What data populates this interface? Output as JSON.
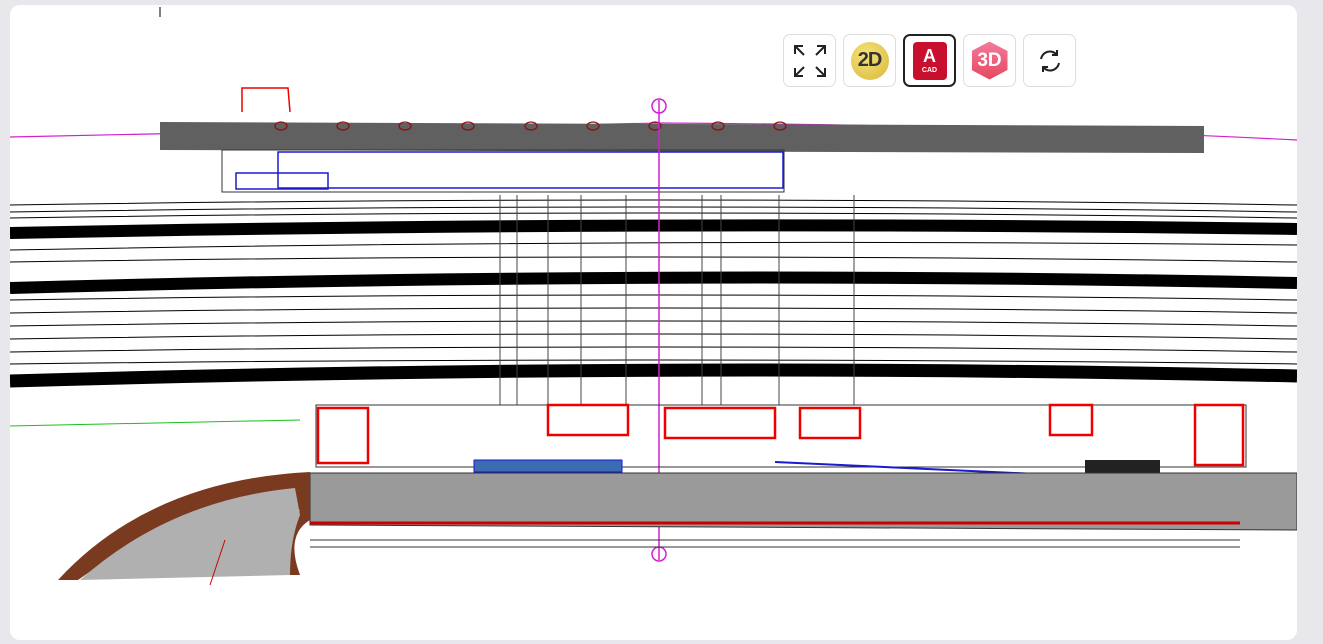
{
  "toolbar": {
    "buttons": [
      {
        "label": "2D"
      },
      {
        "label": "A",
        "sublabel": "CAD"
      },
      {
        "label": "3D"
      }
    ]
  }
}
